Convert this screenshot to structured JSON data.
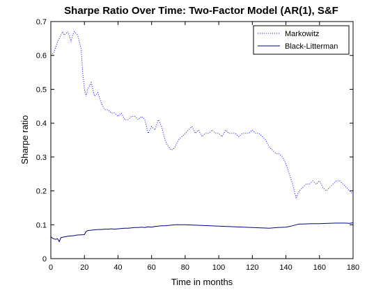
{
  "chart_data": {
    "type": "line",
    "title": "Sharpe Ratio Over Time: Two-Factor Model (AR(1), S&F",
    "xlabel": "Time in months",
    "ylabel": "Sharpe ratio",
    "xlim": [
      0,
      180
    ],
    "ylim": [
      0,
      0.7
    ],
    "xticks": [
      0,
      20,
      40,
      60,
      80,
      100,
      120,
      140,
      160,
      180
    ],
    "yticks": [
      0,
      0.1,
      0.2,
      0.3,
      0.4,
      0.5,
      0.6,
      0.7
    ],
    "grid": false,
    "legend": "top-right",
    "series": [
      {
        "name": "Markowitz",
        "style": "dotted",
        "color": "#0000ff",
        "x": [
          0,
          2,
          4,
          6,
          7,
          8,
          10,
          11,
          12,
          13,
          14,
          16,
          18,
          19,
          20,
          21,
          22,
          24,
          25,
          26,
          28,
          30,
          32,
          34,
          36,
          38,
          40,
          42,
          44,
          46,
          48,
          50,
          52,
          54,
          56,
          58,
          60,
          62,
          64,
          66,
          68,
          70,
          72,
          74,
          76,
          78,
          80,
          82,
          84,
          86,
          88,
          90,
          92,
          94,
          96,
          98,
          100,
          102,
          104,
          106,
          108,
          110,
          112,
          114,
          116,
          118,
          120,
          122,
          124,
          126,
          128,
          130,
          132,
          134,
          136,
          138,
          140,
          142,
          144,
          146,
          148,
          150,
          152,
          154,
          156,
          158,
          160,
          162,
          164,
          166,
          168,
          170,
          172,
          174,
          176,
          178,
          180
        ],
        "y": [
          0.6,
          0.61,
          0.64,
          0.66,
          0.67,
          0.66,
          0.67,
          0.66,
          0.64,
          0.66,
          0.67,
          0.66,
          0.62,
          0.55,
          0.5,
          0.48,
          0.5,
          0.52,
          0.5,
          0.48,
          0.49,
          0.46,
          0.44,
          0.44,
          0.43,
          0.43,
          0.42,
          0.43,
          0.41,
          0.41,
          0.42,
          0.42,
          0.41,
          0.42,
          0.41,
          0.37,
          0.39,
          0.38,
          0.41,
          0.39,
          0.35,
          0.33,
          0.32,
          0.33,
          0.35,
          0.36,
          0.37,
          0.38,
          0.39,
          0.37,
          0.38,
          0.36,
          0.37,
          0.37,
          0.38,
          0.37,
          0.37,
          0.36,
          0.38,
          0.37,
          0.37,
          0.37,
          0.36,
          0.37,
          0.37,
          0.37,
          0.38,
          0.37,
          0.37,
          0.36,
          0.35,
          0.33,
          0.32,
          0.31,
          0.31,
          0.3,
          0.28,
          0.25,
          0.22,
          0.18,
          0.2,
          0.21,
          0.22,
          0.22,
          0.23,
          0.22,
          0.23,
          0.21,
          0.2,
          0.21,
          0.22,
          0.23,
          0.23,
          0.22,
          0.21,
          0.2,
          0.19
        ]
      },
      {
        "name": "Black-Litterman",
        "style": "solid",
        "color": "#00008b",
        "x": [
          0,
          1,
          2,
          3,
          4,
          5,
          6,
          8,
          10,
          12,
          14,
          16,
          18,
          20,
          21,
          22,
          24,
          26,
          28,
          30,
          32,
          34,
          36,
          38,
          40,
          42,
          44,
          46,
          48,
          50,
          52,
          54,
          56,
          58,
          60,
          62,
          64,
          66,
          68,
          70,
          72,
          74,
          76,
          78,
          80,
          85,
          90,
          95,
          100,
          105,
          110,
          115,
          120,
          125,
          130,
          135,
          140,
          142,
          144,
          146,
          148,
          150,
          155,
          160,
          165,
          170,
          175,
          178,
          180
        ],
        "y": [
          0.065,
          0.06,
          0.058,
          0.057,
          0.059,
          0.05,
          0.062,
          0.064,
          0.066,
          0.067,
          0.068,
          0.07,
          0.07,
          0.071,
          0.08,
          0.083,
          0.084,
          0.085,
          0.086,
          0.086,
          0.087,
          0.087,
          0.088,
          0.087,
          0.088,
          0.089,
          0.09,
          0.09,
          0.091,
          0.092,
          0.092,
          0.093,
          0.092,
          0.094,
          0.093,
          0.095,
          0.096,
          0.097,
          0.097,
          0.098,
          0.099,
          0.1,
          0.1,
          0.1,
          0.1,
          0.099,
          0.098,
          0.097,
          0.096,
          0.095,
          0.094,
          0.093,
          0.092,
          0.091,
          0.09,
          0.092,
          0.093,
          0.095,
          0.097,
          0.1,
          0.102,
          0.102,
          0.103,
          0.103,
          0.104,
          0.105,
          0.105,
          0.104,
          0.106
        ]
      }
    ]
  }
}
